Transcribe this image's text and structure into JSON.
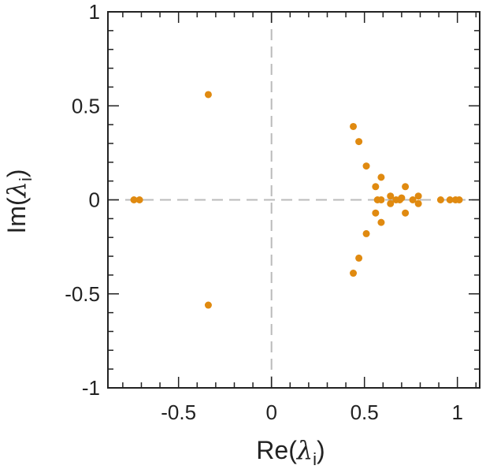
{
  "chart_data": {
    "type": "scatter",
    "title": "",
    "xlabel": "Re(λi)",
    "ylabel": "Im(λi)",
    "xlabel_parts": {
      "prefix": "Re(",
      "symbol": "λ",
      "subscript": "i",
      "suffix": ")"
    },
    "ylabel_parts": {
      "prefix": "Im(",
      "symbol": "λ",
      "subscript": "i",
      "suffix": ")"
    },
    "xlim": [
      -0.88,
      1.12
    ],
    "ylim": [
      -1,
      1
    ],
    "xticks": [
      -0.5,
      0,
      0.5,
      1
    ],
    "xtick_labels": [
      "-0.5",
      "0",
      "0.5",
      "1"
    ],
    "yticks": [
      -1,
      -0.5,
      0,
      0.5,
      1
    ],
    "ytick_labels": [
      "-1",
      "-0.5",
      "0",
      "0.5",
      "1"
    ],
    "x_minor_step": 0.1,
    "y_minor_step": 0.1,
    "grid": false,
    "reference_lines": [
      {
        "axis": "x",
        "value": 0,
        "style": "dashed",
        "color": "#bbbbbb"
      },
      {
        "axis": "y",
        "value": 0,
        "style": "dashed",
        "color": "#bbbbbb"
      }
    ],
    "marker_color": "#e08a10",
    "points": [
      {
        "x": -0.34,
        "y": 0.56
      },
      {
        "x": -0.34,
        "y": -0.56
      },
      {
        "x": -0.74,
        "y": 0.0
      },
      {
        "x": -0.71,
        "y": 0.0
      },
      {
        "x": 0.44,
        "y": 0.39
      },
      {
        "x": 0.44,
        "y": -0.39
      },
      {
        "x": 0.47,
        "y": 0.31
      },
      {
        "x": 0.47,
        "y": -0.31
      },
      {
        "x": 0.51,
        "y": 0.18
      },
      {
        "x": 0.51,
        "y": -0.18
      },
      {
        "x": 0.56,
        "y": 0.07
      },
      {
        "x": 0.56,
        "y": -0.07
      },
      {
        "x": 0.57,
        "y": 0.0
      },
      {
        "x": 0.59,
        "y": 0.0
      },
      {
        "x": 0.59,
        "y": 0.12
      },
      {
        "x": 0.59,
        "y": -0.12
      },
      {
        "x": 0.64,
        "y": 0.02
      },
      {
        "x": 0.64,
        "y": -0.02
      },
      {
        "x": 0.67,
        "y": 0.0
      },
      {
        "x": 0.69,
        "y": 0.0
      },
      {
        "x": 0.7,
        "y": 0.01
      },
      {
        "x": 0.72,
        "y": 0.07
      },
      {
        "x": 0.72,
        "y": -0.07
      },
      {
        "x": 0.76,
        "y": 0.0
      },
      {
        "x": 0.79,
        "y": 0.02
      },
      {
        "x": 0.79,
        "y": -0.02
      },
      {
        "x": 0.91,
        "y": 0.0
      },
      {
        "x": 0.96,
        "y": 0.0
      },
      {
        "x": 0.99,
        "y": 0.0
      },
      {
        "x": 1.01,
        "y": 0.0
      }
    ]
  }
}
